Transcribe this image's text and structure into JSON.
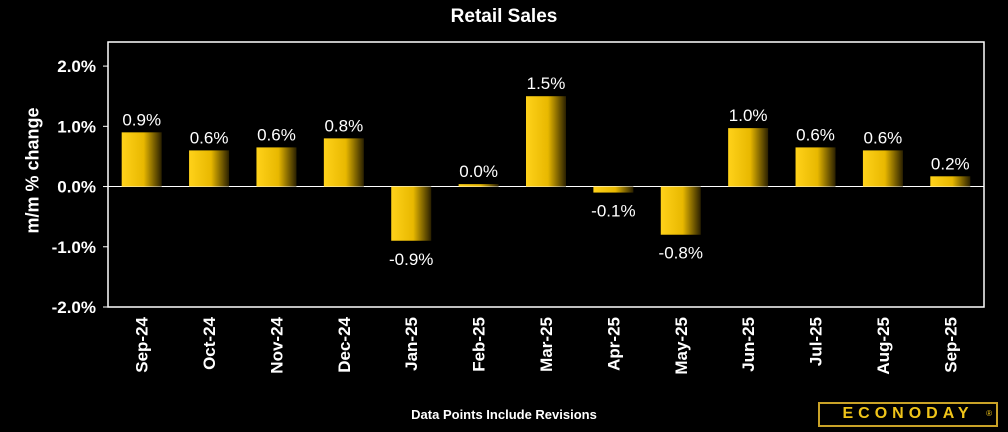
{
  "chart_data": {
    "type": "bar",
    "title": "Retail Sales",
    "ylabel": "m/m % change",
    "xlabel": "",
    "categories": [
      "Sep-24",
      "Oct-24",
      "Nov-24",
      "Dec-24",
      "Jan-25",
      "Feb-25",
      "Mar-25",
      "Apr-25",
      "May-25",
      "Jun-25",
      "Jul-25",
      "Aug-25",
      "Sep-25"
    ],
    "values": [
      0.9,
      0.6,
      0.65,
      0.8,
      -0.9,
      0.04,
      1.5,
      -0.1,
      -0.8,
      0.97,
      0.65,
      0.6,
      0.17
    ],
    "data_labels": [
      "0.9%",
      "0.6%",
      "0.6%",
      "0.8%",
      "-0.9%",
      "0.0%",
      "1.5%",
      "-0.1%",
      "-0.8%",
      "1.0%",
      "0.6%",
      "0.6%",
      "0.2%"
    ],
    "ylim": [
      -2.0,
      2.4
    ],
    "yticks": [
      2.0,
      1.0,
      0.0,
      -1.0,
      -2.0
    ],
    "ytick_labels": [
      "2.0%",
      "1.0%",
      "0.0%",
      "-1.0%",
      "-2.0%"
    ],
    "grid": false,
    "bar_color": "#f0c419",
    "background": "#000000"
  },
  "footnote": "Data Points Include Revisions",
  "logo": {
    "text": "ECONODAY",
    "mark": "®"
  }
}
